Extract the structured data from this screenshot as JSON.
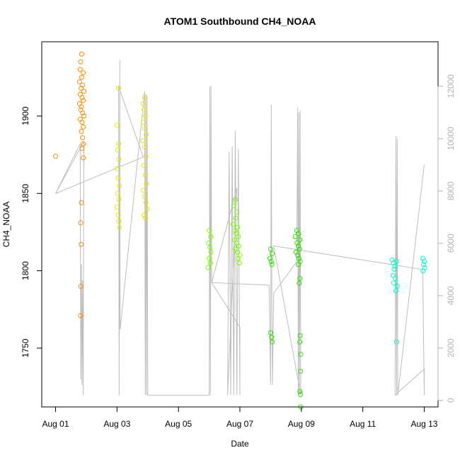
{
  "chart_data": {
    "type": "scatter",
    "title": "ATOM1 Southbound CH4_NOAA",
    "xlabel": "Date",
    "ylabel": "CH4_NOAA",
    "x_tick_labels": [
      "Aug 01",
      "Aug 03",
      "Aug 05",
      "Aug 07",
      "Aug 09",
      "Aug 11",
      "Aug 13"
    ],
    "x_ticks_day": [
      1,
      3,
      5,
      7,
      9,
      11,
      13
    ],
    "xlim_day": [
      0.55,
      13.45
    ],
    "y_ticks": [
      1750,
      1800,
      1850,
      1900
    ],
    "ylim": [
      1712,
      1948
    ],
    "y2_ticks": [
      0,
      2000,
      4000,
      6000,
      8000,
      10000,
      12000
    ],
    "y2lim": [
      -250,
      13700
    ],
    "grid": false,
    "legend": "none",
    "colors": {
      "altitude_line": "#bebebe",
      "secondary_axis": "#b3b3b3",
      "points_aug01": "#ff8c00",
      "points_aug03": "#e6e600",
      "points_aug06": "#78ff00",
      "points_aug08": "#2ee000",
      "points_aug12": "#00ffc8"
    },
    "series": [
      {
        "color": "#ff8c00",
        "points": [
          [
            1.0,
            1874
          ],
          [
            1.85,
            1940
          ],
          [
            1.82,
            1935
          ],
          [
            1.8,
            1930
          ],
          [
            1.9,
            1928
          ],
          [
            1.85,
            1925
          ],
          [
            1.78,
            1922
          ],
          [
            1.88,
            1920
          ],
          [
            1.83,
            1918
          ],
          [
            1.92,
            1916
          ],
          [
            1.8,
            1914
          ],
          [
            1.86,
            1912
          ],
          [
            1.9,
            1910
          ],
          [
            1.78,
            1908
          ],
          [
            1.84,
            1906
          ],
          [
            1.82,
            1904
          ],
          [
            1.88,
            1902
          ],
          [
            1.92,
            1900
          ],
          [
            1.8,
            1898
          ],
          [
            1.86,
            1896
          ],
          [
            1.9,
            1893
          ],
          [
            1.84,
            1890
          ],
          [
            1.88,
            1886
          ],
          [
            1.9,
            1882
          ],
          [
            1.86,
            1879
          ],
          [
            1.9,
            1873
          ],
          [
            1.84,
            1844
          ],
          [
            1.82,
            1831
          ],
          [
            1.83,
            1817
          ],
          [
            1.82,
            1790
          ],
          [
            1.81,
            1771
          ]
        ]
      },
      {
        "color": "#e6e600",
        "points": [
          [
            3.05,
            1918
          ],
          [
            3.0,
            1894
          ],
          [
            3.05,
            1882
          ],
          [
            3.02,
            1878
          ],
          [
            3.06,
            1872
          ],
          [
            3.0,
            1866
          ],
          [
            3.04,
            1860
          ],
          [
            3.08,
            1855
          ],
          [
            3.02,
            1850
          ],
          [
            3.06,
            1846
          ],
          [
            3.0,
            1841
          ],
          [
            3.04,
            1836
          ],
          [
            3.06,
            1832
          ],
          [
            3.08,
            1828
          ],
          [
            3.9,
            1912
          ],
          [
            3.85,
            1908
          ],
          [
            3.88,
            1904
          ],
          [
            3.92,
            1900
          ],
          [
            3.86,
            1896
          ],
          [
            3.9,
            1892
          ],
          [
            3.95,
            1888
          ],
          [
            3.84,
            1884
          ],
          [
            3.9,
            1880
          ],
          [
            3.94,
            1874
          ],
          [
            3.88,
            1868
          ],
          [
            3.92,
            1862
          ],
          [
            3.96,
            1856
          ],
          [
            3.86,
            1852
          ],
          [
            3.9,
            1848
          ],
          [
            3.94,
            1844
          ],
          [
            3.98,
            1840
          ],
          [
            3.88,
            1836
          ],
          [
            3.92,
            1834
          ]
        ]
      },
      {
        "color": "#78ff00",
        "points": [
          [
            6.0,
            1826
          ],
          [
            6.05,
            1822
          ],
          [
            5.98,
            1818
          ],
          [
            6.02,
            1815
          ],
          [
            6.06,
            1812
          ],
          [
            6.0,
            1808
          ],
          [
            6.04,
            1805
          ],
          [
            5.96,
            1802
          ],
          [
            6.85,
            1846
          ],
          [
            6.8,
            1842
          ],
          [
            6.9,
            1838
          ],
          [
            6.86,
            1834
          ],
          [
            6.78,
            1830
          ],
          [
            6.92,
            1828
          ],
          [
            6.84,
            1826
          ],
          [
            6.88,
            1824
          ],
          [
            6.95,
            1822
          ],
          [
            6.82,
            1820
          ],
          [
            6.9,
            1818
          ],
          [
            6.96,
            1816
          ],
          [
            6.86,
            1814
          ],
          [
            6.92,
            1812
          ],
          [
            7.0,
            1810
          ],
          [
            6.94,
            1808
          ],
          [
            6.98,
            1805
          ]
        ]
      },
      {
        "color": "#2ee000",
        "points": [
          [
            8.0,
            1814
          ],
          [
            8.05,
            1811
          ],
          [
            7.98,
            1808
          ],
          [
            8.02,
            1806
          ],
          [
            8.04,
            1804
          ],
          [
            8.0,
            1760
          ],
          [
            8.03,
            1757
          ],
          [
            8.05,
            1754
          ],
          [
            8.85,
            1826
          ],
          [
            8.9,
            1824
          ],
          [
            8.8,
            1822
          ],
          [
            8.95,
            1820
          ],
          [
            8.86,
            1818
          ],
          [
            8.9,
            1816
          ],
          [
            8.94,
            1814
          ],
          [
            8.82,
            1812
          ],
          [
            8.88,
            1810
          ],
          [
            8.92,
            1808
          ],
          [
            8.96,
            1806
          ],
          [
            8.9,
            1804
          ],
          [
            8.95,
            1795
          ],
          [
            8.93,
            1792
          ],
          [
            8.96,
            1758
          ],
          [
            8.95,
            1754
          ],
          [
            8.98,
            1746
          ],
          [
            8.97,
            1735
          ],
          [
            8.95,
            1722
          ],
          [
            8.97,
            1720
          ],
          [
            8.98,
            1712
          ]
        ]
      },
      {
        "color": "#00ffc8",
        "points": [
          [
            11.95,
            1807
          ],
          [
            12.0,
            1805
          ],
          [
            12.05,
            1803
          ],
          [
            12.1,
            1806
          ],
          [
            12.02,
            1801
          ],
          [
            11.98,
            1797
          ],
          [
            12.06,
            1795
          ],
          [
            12.0,
            1792
          ],
          [
            12.12,
            1790
          ],
          [
            12.08,
            1787
          ],
          [
            12.1,
            1754
          ],
          [
            12.95,
            1808
          ],
          [
            13.0,
            1806
          ],
          [
            12.98,
            1804
          ],
          [
            13.02,
            1802
          ],
          [
            12.96,
            1800
          ]
        ]
      }
    ],
    "altitude_trace": [
      [
        1.0,
        7900
      ],
      [
        1.8,
        9800
      ],
      [
        1.82,
        800
      ],
      [
        1.84,
        5200
      ],
      [
        1.86,
        600
      ],
      [
        1.88,
        4600
      ],
      [
        1.9,
        200
      ],
      [
        1.92,
        9900
      ],
      [
        1.0,
        7900
      ],
      [
        3.85,
        9300
      ],
      [
        3.05,
        12000
      ],
      [
        3.07,
        200
      ],
      [
        3.09,
        13000
      ],
      [
        3.1,
        2700
      ],
      [
        3.9,
        11800
      ],
      [
        3.92,
        200
      ],
      [
        3.94,
        11700
      ],
      [
        3.96,
        200
      ],
      [
        3.98,
        11600
      ],
      [
        4.0,
        200
      ],
      [
        6.0,
        200
      ],
      [
        6.02,
        12000
      ],
      [
        6.04,
        200
      ],
      [
        6.06,
        12000
      ],
      [
        6.08,
        4500
      ],
      [
        6.9,
        8100
      ],
      [
        6.6,
        200
      ],
      [
        6.65,
        9500
      ],
      [
        6.7,
        200
      ],
      [
        6.75,
        9700
      ],
      [
        6.8,
        200
      ],
      [
        6.85,
        10300
      ],
      [
        6.9,
        200
      ],
      [
        6.95,
        9600
      ],
      [
        7.0,
        200
      ],
      [
        7.0,
        2800
      ],
      [
        6.08,
        4500
      ],
      [
        7.95,
        4400
      ],
      [
        8.0,
        600
      ],
      [
        8.02,
        11300
      ],
      [
        8.04,
        4200
      ],
      [
        8.06,
        600
      ],
      [
        8.1,
        4100
      ],
      [
        8.85,
        5300
      ],
      [
        8.88,
        11200
      ],
      [
        8.9,
        200
      ],
      [
        8.92,
        11000
      ],
      [
        8.94,
        200
      ],
      [
        8.96,
        11100
      ],
      [
        8.98,
        200
      ],
      [
        8.1,
        5900
      ],
      [
        12.95,
        5000
      ],
      [
        13.0,
        200
      ],
      [
        13.0,
        1200
      ],
      [
        12.05,
        200
      ],
      [
        12.08,
        10100
      ],
      [
        12.1,
        200
      ],
      [
        12.12,
        10000
      ],
      [
        12.14,
        200
      ],
      [
        13.0,
        9000
      ]
    ]
  }
}
